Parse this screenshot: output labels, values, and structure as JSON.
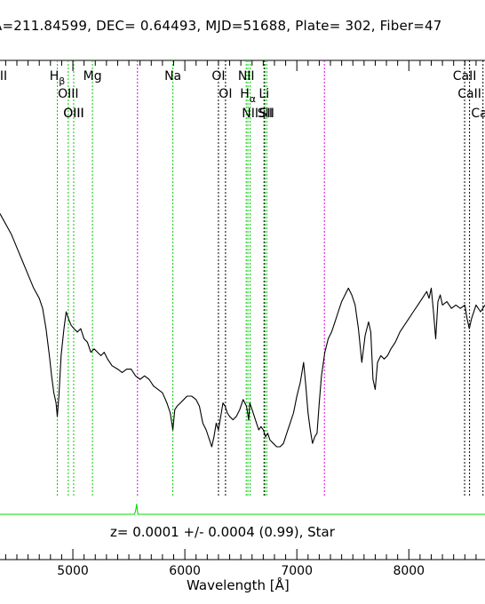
{
  "header": "A=211.84599, DEC= 0.64493, MJD=51688, Plate= 302, Fiber=47",
  "redshift_text": "z= 0.0001 +/- 0.0004 (0.99), Star",
  "chart_data": {
    "type": "line",
    "title": "A=211.84599, DEC= 0.64493, MJD=51688, Plate= 302, Fiber=47",
    "xlabel": "Wavelength [Å]",
    "ylabel": "",
    "xlim": [
      4270,
      8680
    ],
    "ylim": [
      0,
      1
    ],
    "x_ticks": [
      5000,
      6000,
      7000,
      8000
    ],
    "grid": false,
    "series": [
      {
        "color": "#000000",
        "x": [
          4270,
          4300,
          4350,
          4400,
          4450,
          4500,
          4550,
          4600,
          4650,
          4700,
          4730,
          4760,
          4790,
          4810,
          4830,
          4850,
          4861,
          4875,
          4895,
          4920,
          4940,
          4960,
          4985,
          5010,
          5040,
          5070,
          5100,
          5130,
          5160,
          5190,
          5220,
          5250,
          5280,
          5310,
          5350,
          5400,
          5440,
          5480,
          5520,
          5560,
          5600,
          5640,
          5680,
          5720,
          5760,
          5800,
          5840,
          5870,
          5893,
          5910,
          5930,
          5960,
          5990,
          6020,
          6060,
          6100,
          6130,
          6160,
          6190,
          6220,
          6240,
          6260,
          6280,
          6300,
          6320,
          6340,
          6360,
          6380,
          6400,
          6430,
          6460,
          6490,
          6520,
          6550,
          6570,
          6580,
          6600,
          6620,
          6640,
          6660,
          6680,
          6700,
          6720,
          6740,
          6760,
          6790,
          6820,
          6850,
          6880,
          6910,
          6940,
          6970,
          7000,
          7030,
          7060,
          7080,
          7100,
          7120,
          7140,
          7160,
          7180,
          7200,
          7220,
          7250,
          7280,
          7310,
          7340,
          7370,
          7400,
          7430,
          7460,
          7490,
          7520,
          7550,
          7580,
          7610,
          7640,
          7660,
          7680,
          7700,
          7720,
          7750,
          7780,
          7810,
          7840,
          7880,
          7920,
          7960,
          8000,
          8040,
          8080,
          8120,
          8160,
          8180,
          8200,
          8220,
          8240,
          8260,
          8280,
          8300,
          8340,
          8380,
          8420,
          8460,
          8500,
          8520,
          8540,
          8560,
          8600,
          8640,
          8680
        ],
        "y": [
          0.86,
          0.85,
          0.84,
          0.81,
          0.78,
          0.74,
          0.7,
          0.66,
          0.62,
          0.59,
          0.56,
          0.5,
          0.42,
          0.36,
          0.31,
          0.28,
          0.24,
          0.3,
          0.42,
          0.5,
          0.55,
          0.53,
          0.51,
          0.5,
          0.49,
          0.5,
          0.47,
          0.46,
          0.43,
          0.44,
          0.43,
          0.42,
          0.43,
          0.41,
          0.39,
          0.38,
          0.37,
          0.38,
          0.38,
          0.36,
          0.35,
          0.36,
          0.35,
          0.33,
          0.32,
          0.31,
          0.28,
          0.25,
          0.2,
          0.26,
          0.27,
          0.28,
          0.29,
          0.3,
          0.3,
          0.29,
          0.27,
          0.22,
          0.2,
          0.17,
          0.15,
          0.18,
          0.22,
          0.2,
          0.24,
          0.28,
          0.27,
          0.25,
          0.24,
          0.23,
          0.24,
          0.26,
          0.29,
          0.27,
          0.23,
          0.28,
          0.26,
          0.24,
          0.22,
          0.2,
          0.21,
          0.2,
          0.18,
          0.19,
          0.17,
          0.16,
          0.15,
          0.15,
          0.16,
          0.19,
          0.22,
          0.25,
          0.3,
          0.34,
          0.4,
          0.33,
          0.25,
          0.2,
          0.16,
          0.18,
          0.19,
          0.28,
          0.36,
          0.43,
          0.47,
          0.49,
          0.52,
          0.55,
          0.58,
          0.6,
          0.62,
          0.6,
          0.57,
          0.5,
          0.4,
          0.48,
          0.52,
          0.49,
          0.35,
          0.32,
          0.4,
          0.42,
          0.41,
          0.42,
          0.44,
          0.46,
          0.49,
          0.51,
          0.53,
          0.55,
          0.57,
          0.59,
          0.61,
          0.59,
          0.62,
          0.55,
          0.47,
          0.58,
          0.6,
          0.57,
          0.58,
          0.56,
          0.57,
          0.56,
          0.57,
          0.53,
          0.5,
          0.53,
          0.57,
          0.55,
          0.57
        ]
      },
      {
        "color": "#00dd00",
        "x": [
          4270,
          5000,
          5500,
          5550,
          5560,
          5570,
          5580,
          5600,
          6000,
          7000,
          8000,
          8680
        ],
        "y": [
          -0.05,
          -0.05,
          -0.05,
          -0.05,
          -0.04,
          -0.02,
          -0.05,
          -0.05,
          -0.05,
          -0.05,
          -0.05,
          -0.05
        ]
      }
    ],
    "line_markers": [
      {
        "wavelength": 4861,
        "color": "#00cc00",
        "labels": [
          "Hβ"
        ]
      },
      {
        "wavelength": 4959,
        "color": "#00cc00",
        "labels": [
          "OIII"
        ]
      },
      {
        "wavelength": 5007,
        "color": "#00cc00",
        "labels": [
          "OIII",
          "OIII"
        ]
      },
      {
        "wavelength": 5175,
        "color": "#00cc00",
        "labels": [
          "Mg"
        ]
      },
      {
        "wavelength": 5577,
        "color": "#dd00dd",
        "labels": []
      },
      {
        "wavelength": 5893,
        "color": "#00cc00",
        "labels": [
          "Na"
        ]
      },
      {
        "wavelength": 6300,
        "color": "#000000",
        "labels": [
          "OI"
        ]
      },
      {
        "wavelength": 6363,
        "color": "#000000",
        "labels": [
          "OI"
        ]
      },
      {
        "wavelength": 6548,
        "color": "#00cc00",
        "labels": [
          "NII"
        ]
      },
      {
        "wavelength": 6563,
        "color": "#00cc00",
        "labels": [
          "Hα"
        ]
      },
      {
        "wavelength": 6583,
        "color": "#00cc00",
        "labels": [
          "NII"
        ]
      },
      {
        "wavelength": 6707,
        "color": "#000000",
        "labels": [
          "Li"
        ]
      },
      {
        "wavelength": 6716,
        "color": "#00cc00",
        "labels": [
          "SII"
        ]
      },
      {
        "wavelength": 6731,
        "color": "#00cc00",
        "labels": [
          "SII"
        ]
      },
      {
        "wavelength": 7246,
        "color": "#dd00dd",
        "labels": []
      },
      {
        "wavelength": 8498,
        "color": "#000000",
        "labels": [
          "CaII"
        ]
      },
      {
        "wavelength": 8542,
        "color": "#000000",
        "labels": [
          "CaII"
        ]
      },
      {
        "wavelength": 8662,
        "color": "#000000",
        "labels": [
          "CaII"
        ]
      }
    ],
    "edge_labels": [
      "II"
    ]
  }
}
